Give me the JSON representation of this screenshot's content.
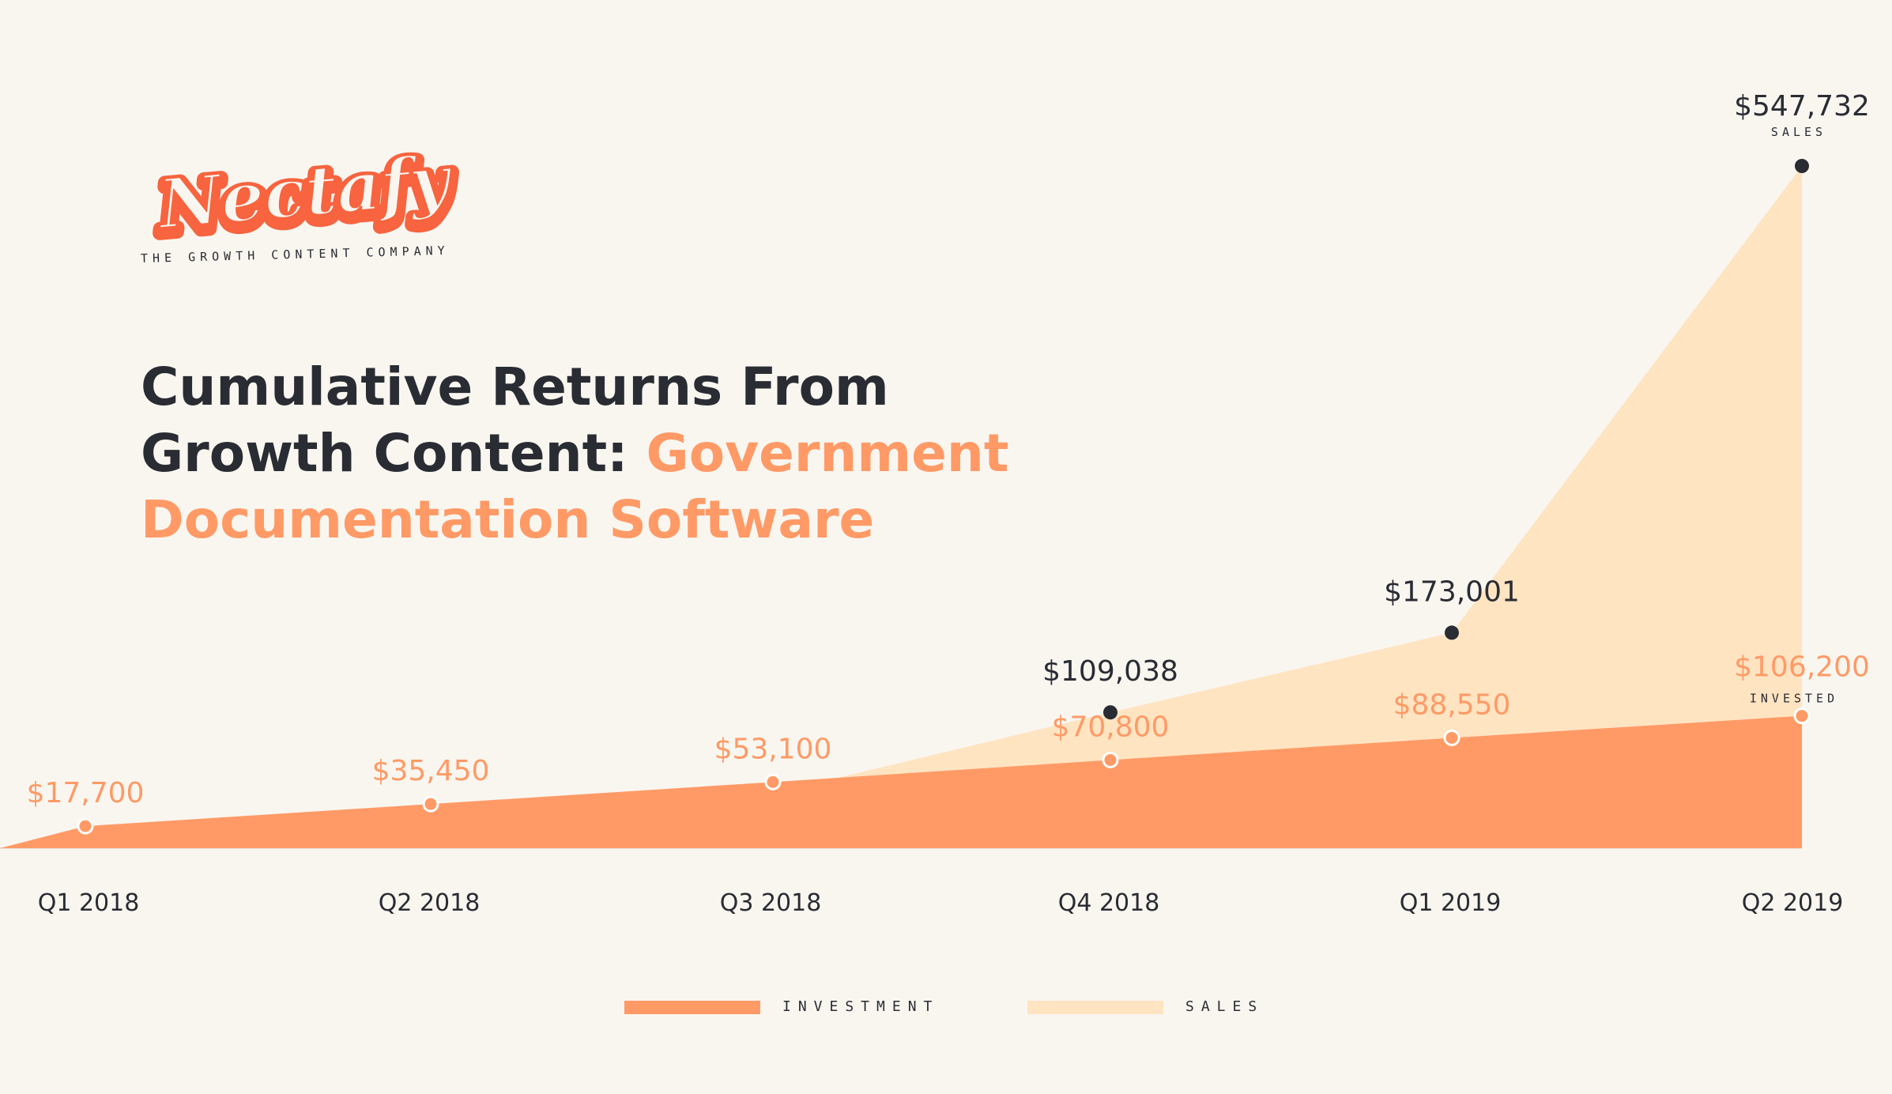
{
  "logo": {
    "wordmark": "Nectafy",
    "tagline": "THE GROWTH CONTENT COMPANY"
  },
  "title": {
    "part1": "Cumulative Returns From",
    "part2": "Growth Content: ",
    "accent1": "Government",
    "accent2": "Documentation Software"
  },
  "colors": {
    "background": "#f9f6f0",
    "investment": "#ff9a66",
    "sales": "#ffe4c2",
    "dark": "#2a2c33"
  },
  "chart_data": {
    "type": "area",
    "categories": [
      "Q1 2018",
      "Q2 2018",
      "Q3 2018",
      "Q4 2018",
      "Q1 2019",
      "Q2 2019"
    ],
    "series": [
      {
        "name": "INVESTMENT",
        "values": [
          17700,
          35450,
          53100,
          70800,
          88550,
          106200
        ],
        "labels": [
          "$17,700",
          "$35,450",
          "$53,100",
          "$70,800",
          "$88,550",
          "$106,200"
        ],
        "end_caption": "INVESTED",
        "color": "#ff9a66"
      },
      {
        "name": "SALES",
        "values": [
          null,
          null,
          null,
          109038,
          173001,
          547732
        ],
        "labels": [
          "",
          "",
          "",
          "$109,038",
          "$173,001",
          "$547,732"
        ],
        "end_caption": "SALES",
        "color": "#ffe4c2"
      }
    ],
    "ylim": [
      0,
      620000
    ],
    "grid": false,
    "legend_position": "bottom-center"
  }
}
